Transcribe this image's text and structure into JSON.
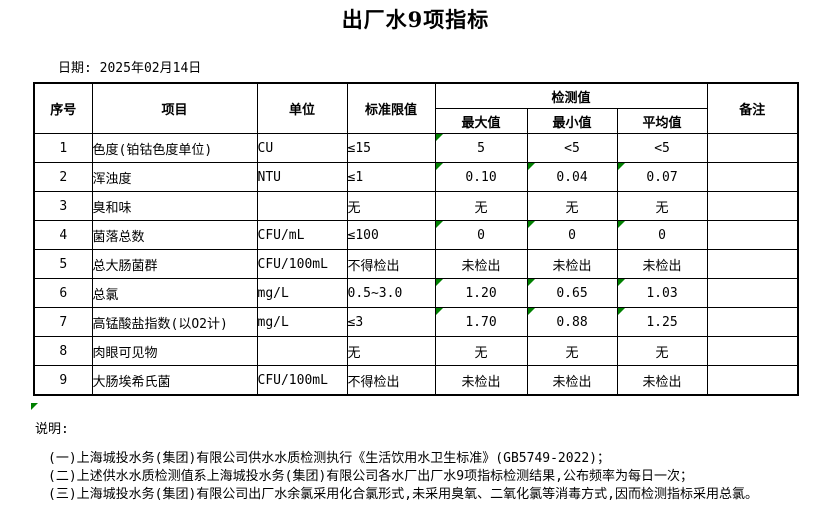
{
  "title": "出厂水9项指标",
  "date": {
    "label": "日期:",
    "value": "2025年02月14日"
  },
  "table": {
    "columns": {
      "no": "序号",
      "item": "项目",
      "unit": "单位",
      "limit": "标准限值",
      "detection_group": "检测值",
      "max": "最大值",
      "min": "最小值",
      "avg": "平均值",
      "remark": "备注"
    },
    "rows": [
      {
        "no": "1",
        "item": "色度(铂钴色度单位)",
        "unit": "CU",
        "limit": "≤15",
        "max": "5",
        "min": "<5",
        "avg": "<5",
        "remark": "",
        "flags": [
          "max"
        ]
      },
      {
        "no": "2",
        "item": "浑浊度",
        "unit": "NTU",
        "limit": "≤1",
        "max": "0.10",
        "min": "0.04",
        "avg": "0.07",
        "remark": "",
        "flags": [
          "max",
          "min",
          "avg"
        ]
      },
      {
        "no": "3",
        "item": "臭和味",
        "unit": "",
        "limit": "无",
        "max": "无",
        "min": "无",
        "avg": "无",
        "remark": "",
        "flags": []
      },
      {
        "no": "4",
        "item": "菌落总数",
        "unit": "CFU/mL",
        "limit": "≤100",
        "max": "0",
        "min": "0",
        "avg": "0",
        "remark": "",
        "flags": [
          "max",
          "min",
          "avg"
        ]
      },
      {
        "no": "5",
        "item": "总大肠菌群",
        "unit": "CFU/100mL",
        "limit": "不得检出",
        "max": "未检出",
        "min": "未检出",
        "avg": "未检出",
        "remark": "",
        "flags": []
      },
      {
        "no": "6",
        "item": "总氯",
        "unit": "mg/L",
        "limit": "0.5~3.0",
        "max": "1.20",
        "min": "0.65",
        "avg": "1.03",
        "remark": "",
        "flags": [
          "max",
          "min",
          "avg"
        ]
      },
      {
        "no": "7",
        "item": "高锰酸盐指数(以O2计)",
        "unit": "mg/L",
        "limit": "≤3",
        "max": "1.70",
        "min": "0.88",
        "avg": "1.25",
        "remark": "",
        "flags": [
          "max",
          "min",
          "avg"
        ]
      },
      {
        "no": "8",
        "item": "肉眼可见物",
        "unit": "",
        "limit": "无",
        "max": "无",
        "min": "无",
        "avg": "无",
        "remark": "",
        "flags": []
      },
      {
        "no": "9",
        "item": "大肠埃希氏菌",
        "unit": "CFU/100mL",
        "limit": "不得检出",
        "max": "未检出",
        "min": "未检出",
        "avg": "未检出",
        "remark": "",
        "flags": []
      }
    ]
  },
  "notes": {
    "title": "说明:",
    "items": [
      "(一)上海城投水务(集团)有限公司供水水质检测执行《生活饮用水卫生标准》(GB5749-2022)；",
      "(二)上述供水水质检测值系上海城投水务(集团)有限公司各水厂出厂水9项指标检测结果,公布频率为每日一次；",
      "(三)上海城投水务(集团)有限公司出厂水余氯采用化合氯形式,未采用臭氧、二氧化氯等消毒方式,因而检测指标采用总氯。"
    ]
  },
  "colors": {
    "flag_triangle": "#008000",
    "table_border": "#000000",
    "background": "#ffffff",
    "text": "#000000"
  }
}
